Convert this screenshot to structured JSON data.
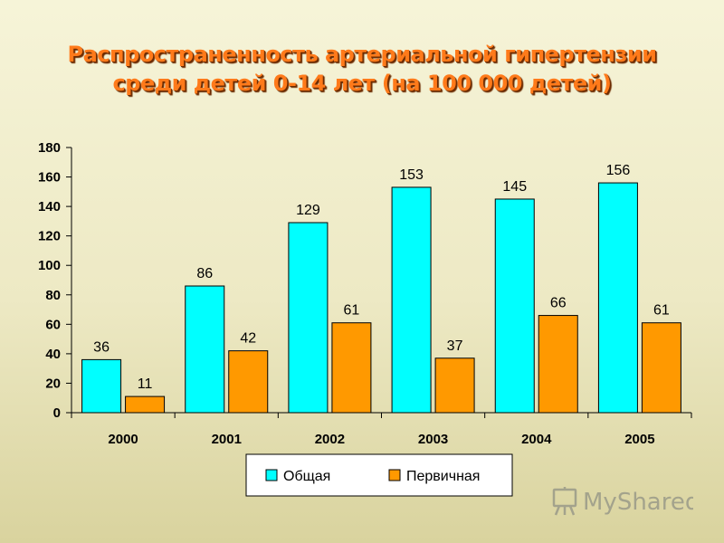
{
  "chart_data": {
    "type": "bar",
    "title": "Распространенность артериальной гипертензии среди детей 0-14 лет (на 100 000 детей)",
    "title_lines": [
      "Распространенность артериальной гипертензии",
      "среди детей 0-14 лет (на 100 000 детей)"
    ],
    "categories": [
      "2000",
      "2001",
      "2002",
      "2003",
      "2004",
      "2005"
    ],
    "series": [
      {
        "name": "Общая",
        "values": [
          36,
          86,
          129,
          153,
          145,
          156
        ],
        "color": "#00ffff"
      },
      {
        "name": "Первичная",
        "values": [
          11,
          42,
          61,
          37,
          66,
          61
        ],
        "color": "#ff9900"
      }
    ],
    "ylim": [
      0,
      180
    ],
    "yticks": [
      0,
      20,
      40,
      60,
      80,
      100,
      120,
      140,
      160,
      180
    ],
    "grid": false,
    "legend": "bottom-center",
    "xlabel": "",
    "ylabel": ""
  },
  "watermark": {
    "text": "MyShared",
    "icon": "presentation-board-icon"
  }
}
